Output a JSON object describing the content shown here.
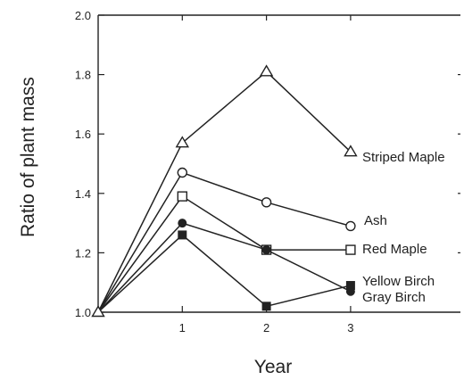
{
  "chart_data": {
    "type": "line",
    "ylabel": "Ratio of plant mass",
    "xlabel": "Year",
    "x": [
      0,
      1,
      2,
      3
    ],
    "xticks": [
      1,
      2,
      3
    ],
    "xlim": [
      0,
      3.3
    ],
    "ylim": [
      1.0,
      2.0
    ],
    "yticks": [
      1.0,
      1.2,
      1.4,
      1.6,
      1.8,
      2.0
    ],
    "ytick_labels": [
      "1.0",
      "1.2",
      "1.4",
      "1.6",
      "1.8",
      "2.0"
    ],
    "grid": false,
    "series": [
      {
        "name": "Striped Maple",
        "marker": "triangle-open",
        "values": [
          1.0,
          1.57,
          1.81,
          1.54
        ]
      },
      {
        "name": "Ash",
        "marker": "circle-open",
        "values": [
          1.0,
          1.47,
          1.37,
          1.29
        ]
      },
      {
        "name": "Red Maple",
        "marker": "square-open",
        "values": [
          1.0,
          1.39,
          1.21,
          1.21
        ]
      },
      {
        "name": "Yellow Birch",
        "marker": "square-filled",
        "values": [
          1.0,
          1.26,
          1.02,
          1.09
        ]
      },
      {
        "name": "Gray Birch",
        "marker": "circle-filled",
        "values": [
          1.0,
          1.3,
          1.21,
          1.07
        ]
      }
    ]
  }
}
